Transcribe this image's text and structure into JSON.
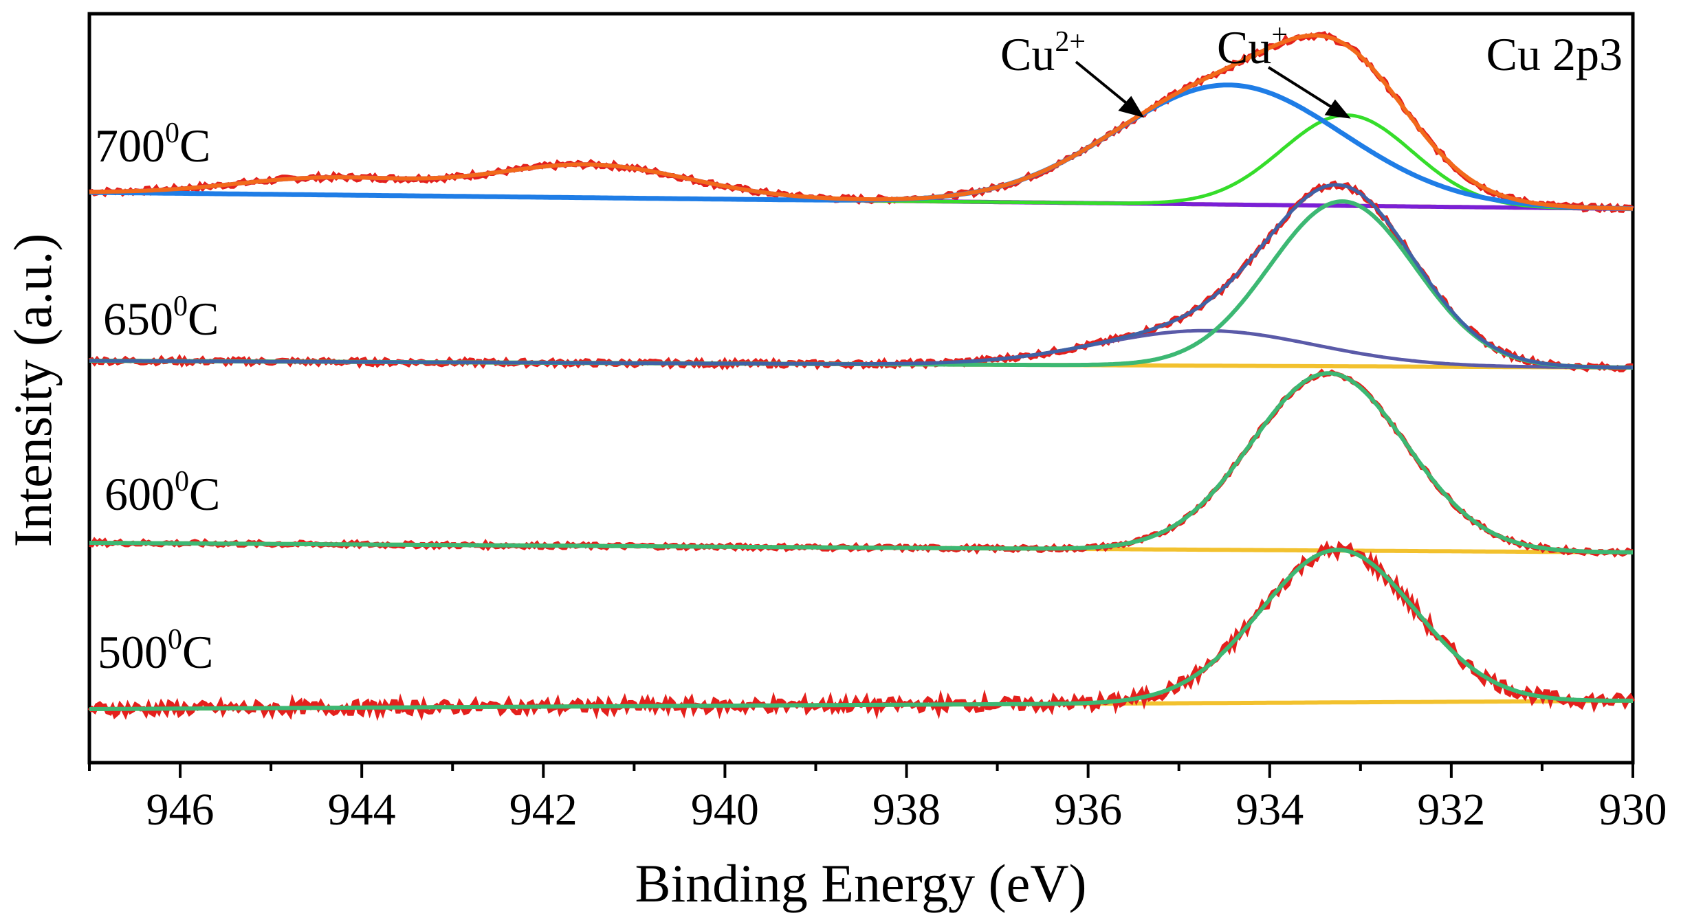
{
  "chart_data": {
    "type": "line",
    "title": "Cu 2p3",
    "xlabel": "Binding Energy (eV)",
    "ylabel": "Intensity (a.u.)",
    "xlim": [
      947,
      930
    ],
    "x_reversed": true,
    "xticks": [
      946,
      944,
      942,
      940,
      938,
      936,
      934,
      932,
      930
    ],
    "y_ticks_shown": false,
    "grid": false,
    "colors": {
      "raw": "#e4201c",
      "envelope_700": "#f26a1b",
      "cu2_700": "#1f7de6",
      "cu1_700": "#35dd2a",
      "sat_700": "#7a1fd6",
      "fit": "#3cb873",
      "cu2_650": "#5a5aa8",
      "envelope_650": "#3f62a5",
      "baseline": "#f2c12e"
    },
    "samples": [
      {
        "label_base": "700",
        "label_sup": "0",
        "label_rest": "C",
        "offset": 3,
        "baseline": 0.0,
        "components": [
          {
            "role": "cu1",
            "center": 933.15,
            "width": 0.72,
            "height": 0.44
          },
          {
            "role": "cu2",
            "center": 934.45,
            "width": 1.25,
            "height": 0.58
          },
          {
            "role": "sat",
            "center": 941.5,
            "width": 1.1,
            "height": 0.16
          },
          {
            "role": "sat",
            "center": 944.4,
            "width": 1.0,
            "height": 0.08
          }
        ]
      },
      {
        "label_base": "650",
        "label_sup": "0",
        "label_rest": "C",
        "offset": 2,
        "baseline": 0.0,
        "components": [
          {
            "role": "cu1",
            "center": 933.2,
            "width": 0.8,
            "height": 0.8
          },
          {
            "role": "cu2",
            "center": 934.7,
            "width": 1.2,
            "height": 0.17
          }
        ]
      },
      {
        "label_base": "600",
        "label_sup": "0",
        "label_rest": "C",
        "offset": 1,
        "baseline": 0.0,
        "components": [
          {
            "role": "fit",
            "center": 933.35,
            "width": 0.85,
            "height": 0.86
          }
        ]
      },
      {
        "label_base": "500",
        "label_sup": "0",
        "label_rest": "C",
        "offset": 0,
        "baseline": 0.0,
        "components": [
          {
            "role": "fit",
            "center": 933.25,
            "width": 0.85,
            "height": 0.74
          }
        ]
      }
    ],
    "annotations": [
      {
        "base": "Cu",
        "sup": "2+",
        "target_x": 935.8,
        "target_sample": "700"
      },
      {
        "base": "Cu",
        "sup": "+",
        "target_x": 933.2,
        "target_sample": "700"
      }
    ]
  }
}
